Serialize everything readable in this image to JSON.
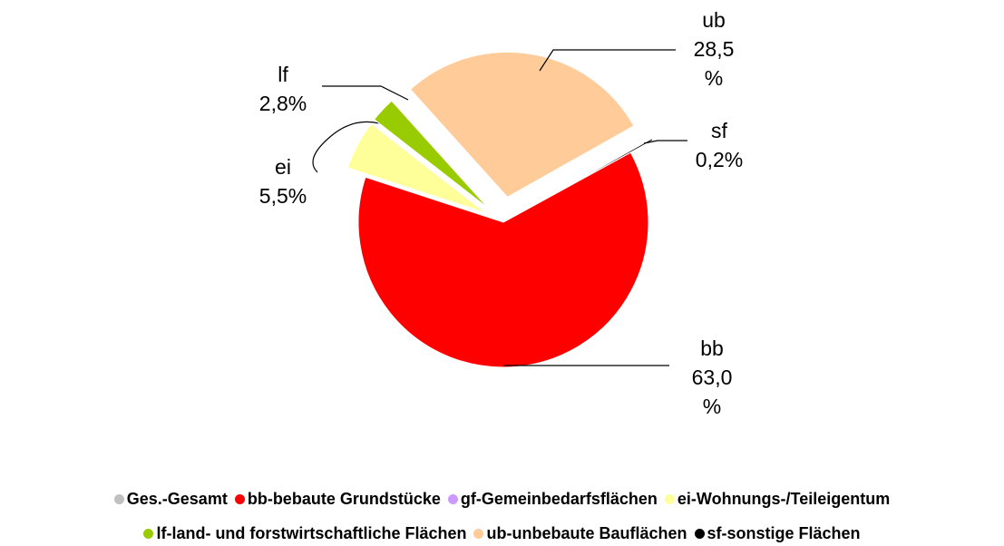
{
  "chart_data": {
    "type": "pie",
    "categories": [
      "bb",
      "ei",
      "lf",
      "ub",
      "sf"
    ],
    "values": [
      63.0,
      5.5,
      2.8,
      28.5,
      0.2
    ],
    "value_labels": [
      "63,0%",
      "5,5%",
      "2,8%",
      "28,5%",
      "0,2%"
    ],
    "colors": [
      "#ff0000",
      "#ffff99",
      "#99cc00",
      "#ffcc99",
      "#000000"
    ],
    "legend": [
      {
        "name": "Ges.-Gesamt",
        "color": "#c0c0c0"
      },
      {
        "name": "bb-bebaute Grundstücke",
        "color": "#ff0000"
      },
      {
        "name": "gf-Gemeinbedarfsflächen",
        "color": "#cc99ff"
      },
      {
        "name": "ei-Wohnungs-/Teileigentum",
        "color": "#ffff99"
      },
      {
        "name": "lf-land- und forstwirtschaftliche Flächen",
        "color": "#99cc00"
      },
      {
        "name": "ub-unbebaute Bauflächen",
        "color": "#ffcc99"
      },
      {
        "name": "sf-sonstige Flächen",
        "color": "#000000"
      }
    ]
  }
}
